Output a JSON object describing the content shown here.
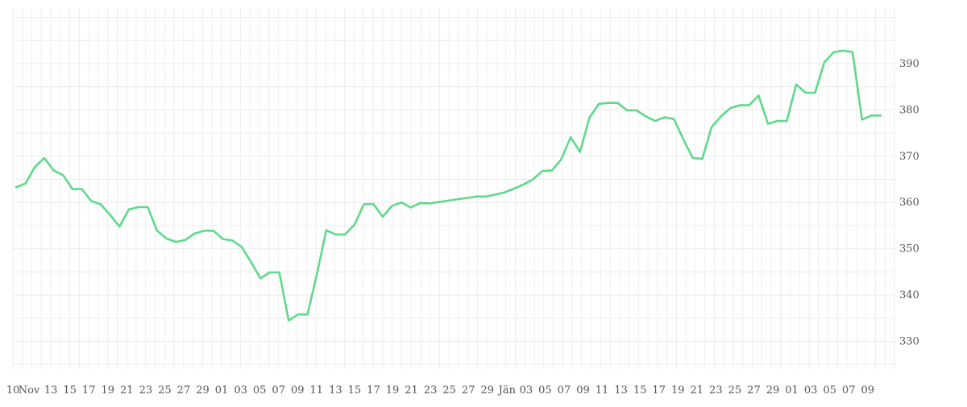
{
  "chart_data": {
    "type": "line",
    "title": "",
    "xlabel": "",
    "ylabel": "",
    "y_axis_position": "right",
    "ylim": [
      324,
      402
    ],
    "y_ticks": [
      330,
      340,
      350,
      360,
      370,
      380,
      390
    ],
    "grid": true,
    "legend": "none",
    "line_color": "#5fd98a",
    "x_tick_labels": [
      "10",
      "Nov",
      "13",
      "15",
      "17",
      "19",
      "21",
      "23",
      "25",
      "27",
      "29",
      "01",
      "03",
      "05",
      "07",
      "09",
      "11",
      "13",
      "15",
      "17",
      "19",
      "21",
      "23",
      "25",
      "27",
      "29",
      "Jän",
      "03",
      "05",
      "07",
      "09",
      "11",
      "13",
      "15",
      "17",
      "19",
      "21",
      "23",
      "25",
      "27",
      "29",
      "01",
      "03",
      "05",
      "07",
      "09"
    ],
    "series": [
      {
        "values": [
          363.3,
          364.1,
          367.7,
          369.6,
          366.9,
          365.9,
          362.9,
          362.9,
          360.3,
          359.6,
          357.3,
          354.8,
          358.5,
          359.0,
          359.0,
          353.9,
          352.2,
          351.5,
          351.9,
          353.3,
          353.9,
          353.9,
          352.1,
          351.8,
          350.4,
          347.1,
          343.6,
          344.9,
          344.9,
          334.5,
          335.8,
          335.8,
          344.5,
          354.0,
          353.1,
          353.1,
          355.2,
          359.6,
          359.7,
          356.9,
          359.3,
          360.0,
          358.9,
          359.9,
          359.8,
          360.1,
          360.4,
          360.7,
          361.0,
          361.3,
          361.3,
          361.7,
          362.2,
          363.0,
          363.9,
          365.0,
          366.8,
          366.9,
          369.3,
          374.1,
          370.9,
          378.3,
          381.3,
          381.5,
          381.5,
          379.9,
          379.9,
          378.6,
          377.6,
          378.4,
          378.0,
          373.6,
          369.6,
          369.4,
          376.3,
          378.6,
          380.4,
          381.0,
          381.0,
          383.1,
          377.0,
          377.6,
          377.6,
          385.5,
          383.7,
          383.7,
          390.3,
          392.5,
          392.8,
          392.5,
          377.9,
          378.8,
          378.8
        ]
      }
    ]
  }
}
